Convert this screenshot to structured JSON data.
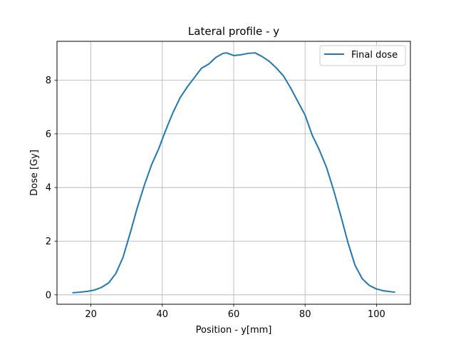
{
  "chart_data": {
    "type": "line",
    "title": "Lateral profile - y",
    "xlabel": "Position - y[mm]",
    "ylabel": "Dose [Gy]",
    "xlim": [
      10.5,
      109.5
    ],
    "ylim": [
      -0.35,
      9.45
    ],
    "xticks": [
      20,
      40,
      60,
      80,
      100
    ],
    "yticks": [
      0,
      2,
      4,
      6,
      8
    ],
    "grid": true,
    "legend_position": "top-right",
    "line_color": "#1f77b4",
    "series": [
      {
        "name": "Final dose",
        "x": [
          15,
          17,
          19,
          21,
          23,
          25,
          27,
          29,
          31,
          33,
          35,
          37,
          39,
          41,
          43,
          45,
          47,
          49,
          51,
          53,
          55,
          57,
          58,
          60,
          62,
          64,
          66,
          68,
          70,
          72,
          74,
          76,
          78,
          80,
          82,
          84,
          86,
          88,
          90,
          92,
          94,
          96,
          98,
          100,
          102,
          105
        ],
        "y": [
          0.08,
          0.1,
          0.13,
          0.18,
          0.28,
          0.45,
          0.8,
          1.4,
          2.3,
          3.25,
          4.1,
          4.85,
          5.45,
          6.15,
          6.8,
          7.35,
          7.75,
          8.1,
          8.45,
          8.6,
          8.85,
          9.0,
          9.02,
          8.92,
          8.95,
          9.0,
          9.02,
          8.88,
          8.7,
          8.45,
          8.15,
          7.7,
          7.2,
          6.7,
          5.95,
          5.4,
          4.75,
          3.9,
          2.95,
          1.95,
          1.1,
          0.6,
          0.35,
          0.22,
          0.15,
          0.1
        ]
      }
    ]
  }
}
